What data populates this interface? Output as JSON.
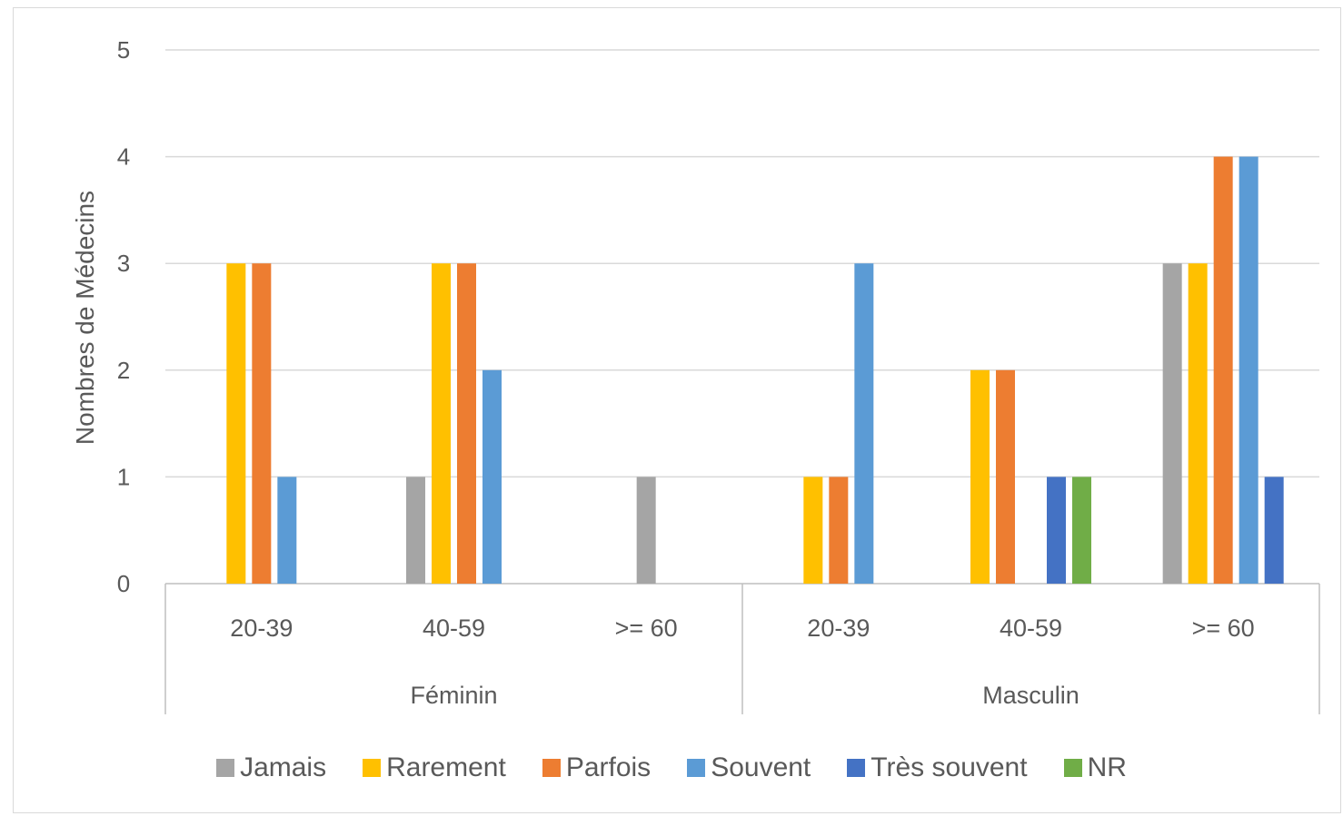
{
  "chart_data": {
    "type": "bar",
    "ylabel": "Nombres de Médecins",
    "xlabel": "",
    "ylim": [
      0,
      5
    ],
    "yticks": [
      "0",
      "1",
      "2",
      "3",
      "4",
      "5"
    ],
    "grid": true,
    "legend_position": "bottom",
    "groups": [
      {
        "label": "Féminin",
        "categories": [
          "20-39",
          "40-59",
          ">= 60"
        ]
      },
      {
        "label": "Masculin",
        "categories": [
          "20-39",
          "40-59",
          ">= 60"
        ]
      }
    ],
    "categories": [
      "Féminin 20-39",
      "Féminin 40-59",
      "Féminin >= 60",
      "Masculin 20-39",
      "Masculin 40-59",
      "Masculin >= 60"
    ],
    "series": [
      {
        "name": "Jamais",
        "color": "#a5a5a5",
        "values": [
          0,
          1,
          1,
          0,
          0,
          3
        ]
      },
      {
        "name": "Rarement",
        "color": "#ffc000",
        "values": [
          3,
          3,
          0,
          1,
          2,
          3
        ]
      },
      {
        "name": "Parfois",
        "color": "#ed7d31",
        "values": [
          3,
          3,
          0,
          1,
          2,
          4
        ]
      },
      {
        "name": "Souvent",
        "color": "#5b9bd5",
        "values": [
          1,
          2,
          0,
          3,
          0,
          4
        ]
      },
      {
        "name": "Très souvent",
        "color": "#4472c4",
        "values": [
          0,
          0,
          0,
          0,
          1,
          1
        ]
      },
      {
        "name": "NR",
        "color": "#70ad47",
        "values": [
          0,
          0,
          0,
          0,
          1,
          0
        ]
      }
    ]
  }
}
